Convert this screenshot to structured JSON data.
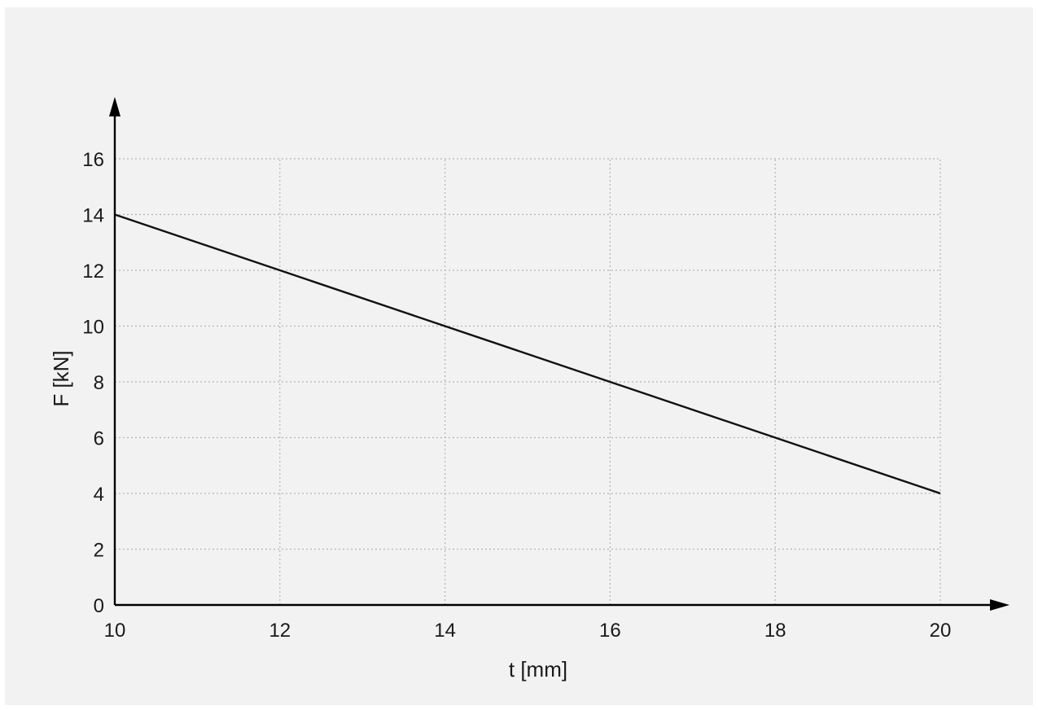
{
  "colors": {
    "background": "#f2f2f2",
    "axis": "#000000",
    "grid": "#b5b5b5",
    "line": "#111111",
    "text": "#1a1a1a"
  },
  "chart_data": {
    "type": "line",
    "title": "",
    "xlabel": "t [mm]",
    "ylabel": "F [kN]",
    "xlim": [
      10,
      20
    ],
    "ylim": [
      0,
      16
    ],
    "x_ticks": [
      10,
      12,
      14,
      16,
      18,
      20
    ],
    "y_ticks": [
      0,
      2,
      4,
      6,
      8,
      10,
      12,
      14,
      16
    ],
    "grid": true,
    "grid_style": "dotted",
    "legend": "none",
    "series": [
      {
        "x": [
          10,
          20
        ],
        "y": [
          14,
          4
        ]
      }
    ]
  }
}
